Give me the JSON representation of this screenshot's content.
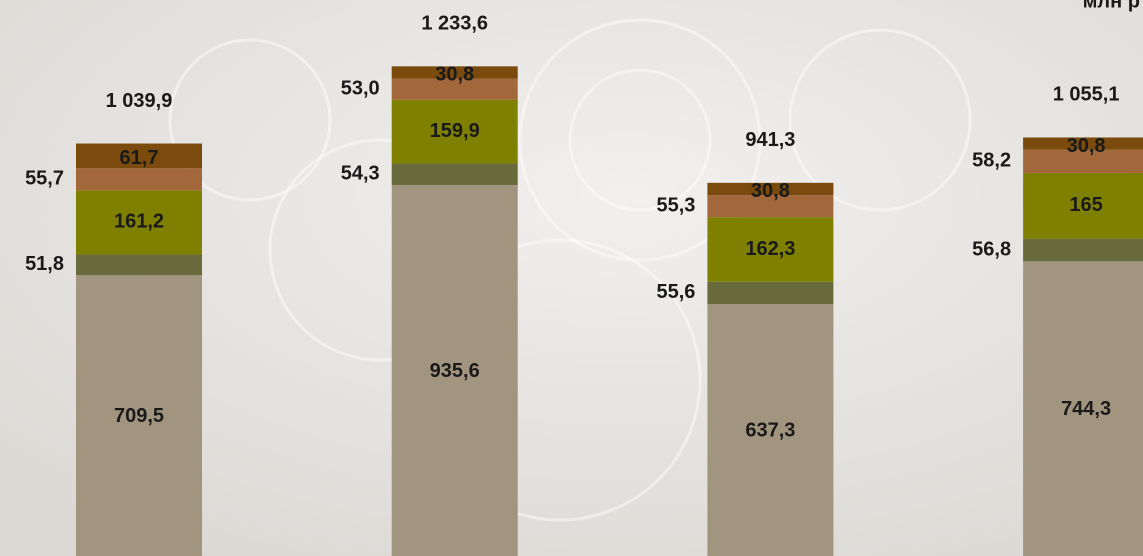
{
  "chart_data": {
    "type": "stacked-bar",
    "unit": "млн р",
    "categories": [
      null,
      null,
      null,
      null
    ],
    "ylim": [
      0,
      1400
    ],
    "series": [
      {
        "color": "#a29580",
        "values": [
          709.5,
          935.6,
          637.3,
          744.3
        ],
        "value_labels": [
          "709,5",
          "935,6",
          "637,3",
          "744,3"
        ],
        "label_pos": "inside"
      },
      {
        "color": "#6a6b3c",
        "values": [
          51.8,
          54.3,
          55.6,
          56.8
        ],
        "value_labels": [
          "51,8",
          "54,3",
          "55,6",
          "56,8"
        ],
        "label_pos": "left"
      },
      {
        "color": "#7f8000",
        "values": [
          161.2,
          159.9,
          162.3,
          165
        ],
        "value_labels": [
          "161,2",
          "159,9",
          "162,3",
          "165"
        ],
        "label_pos": "inside"
      },
      {
        "color": "#a2673a",
        "values": [
          55.7,
          53.0,
          55.3,
          58.2
        ],
        "value_labels": [
          "55,7",
          "53,0",
          "55,3",
          "58,2"
        ],
        "label_pos": "left"
      },
      {
        "color": "#7a4b0c",
        "values": [
          61.7,
          30.8,
          30.8,
          30.8
        ],
        "value_labels": [
          "61,7",
          "30,8",
          "30,8",
          "30,8"
        ],
        "label_pos": "inside"
      }
    ],
    "totals": {
      "values": [
        1039.9,
        1233.6,
        941.3,
        1055.1
      ],
      "value_labels": [
        "1 039,9",
        "1 233,6",
        "941,3",
        "1 055,1"
      ]
    }
  }
}
